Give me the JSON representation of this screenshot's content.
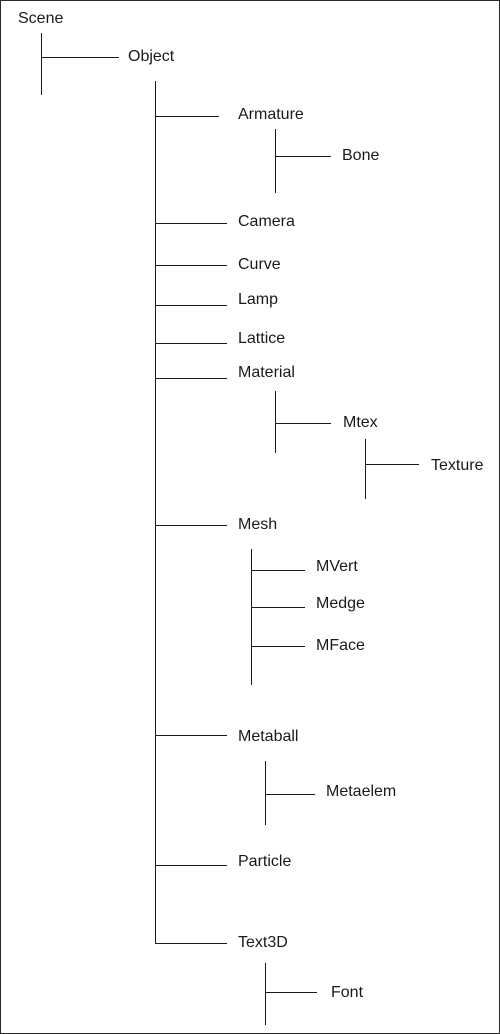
{
  "tree": {
    "scene": "Scene",
    "object": "Object",
    "armature": "Armature",
    "bone": "Bone",
    "camera": "Camera",
    "curve": "Curve",
    "lamp": "Lamp",
    "lattice": "Lattice",
    "material": "Material",
    "mtex": "Mtex",
    "texture": "Texture",
    "mesh": "Mesh",
    "mvert": "MVert",
    "medge": "Medge",
    "mface": "MFace",
    "metaball": "Metaball",
    "metaelem": "Metaelem",
    "particle": "Particle",
    "text3d": "Text3D",
    "font": "Font"
  }
}
